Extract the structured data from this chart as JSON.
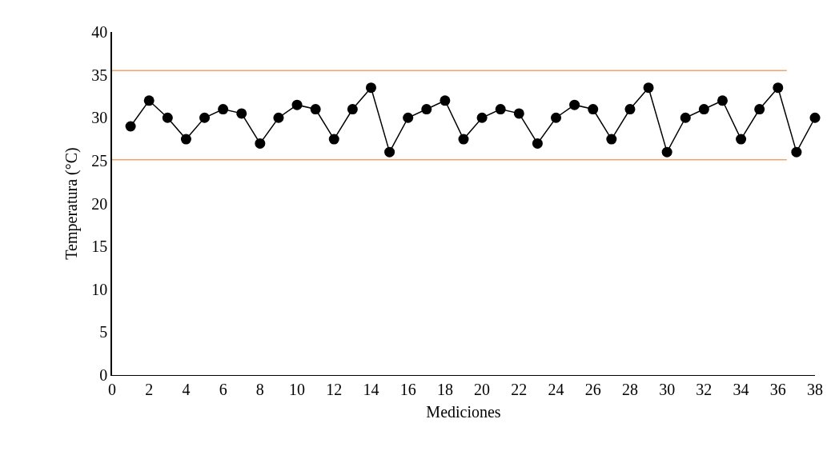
{
  "chart_data": {
    "type": "line",
    "xlabel": "Mediciones",
    "ylabel": "Temperatura (°C)",
    "x": [
      1,
      2,
      3,
      4,
      5,
      6,
      7,
      8,
      9,
      10,
      11,
      12,
      13,
      14,
      15,
      16,
      17,
      18,
      19,
      20,
      21,
      22,
      23,
      24,
      25,
      26,
      27,
      28,
      29,
      30,
      31,
      32,
      33,
      34,
      35,
      36,
      37,
      38
    ],
    "series": [
      {
        "color": "#000000",
        "values": [
          29,
          32,
          30,
          27.5,
          30,
          31,
          30.5,
          27,
          30,
          31.5,
          31,
          27.5,
          31,
          33.5,
          26,
          30,
          31,
          32,
          27.5,
          30,
          31,
          30.5,
          27,
          30,
          31.5,
          31,
          27.5,
          31,
          33.5,
          26,
          30,
          31,
          32,
          27.5,
          31,
          33.5,
          26,
          30
        ]
      }
    ],
    "xlim": [
      0,
      38
    ],
    "xticks": [
      0,
      2,
      4,
      6,
      8,
      10,
      12,
      14,
      16,
      18,
      20,
      22,
      24,
      26,
      28,
      30,
      32,
      34,
      36,
      38
    ],
    "ylim": [
      0,
      40
    ],
    "yticks": [
      0,
      5,
      10,
      15,
      20,
      25,
      30,
      35,
      40
    ],
    "ref_lines": [
      {
        "axis": "y",
        "value": 35.5,
        "color": "#f4a26b"
      },
      {
        "axis": "y",
        "value": 25.1,
        "color": "#f4a26b"
      }
    ],
    "grid": false,
    "marker": "circle",
    "line_style": "solid"
  }
}
